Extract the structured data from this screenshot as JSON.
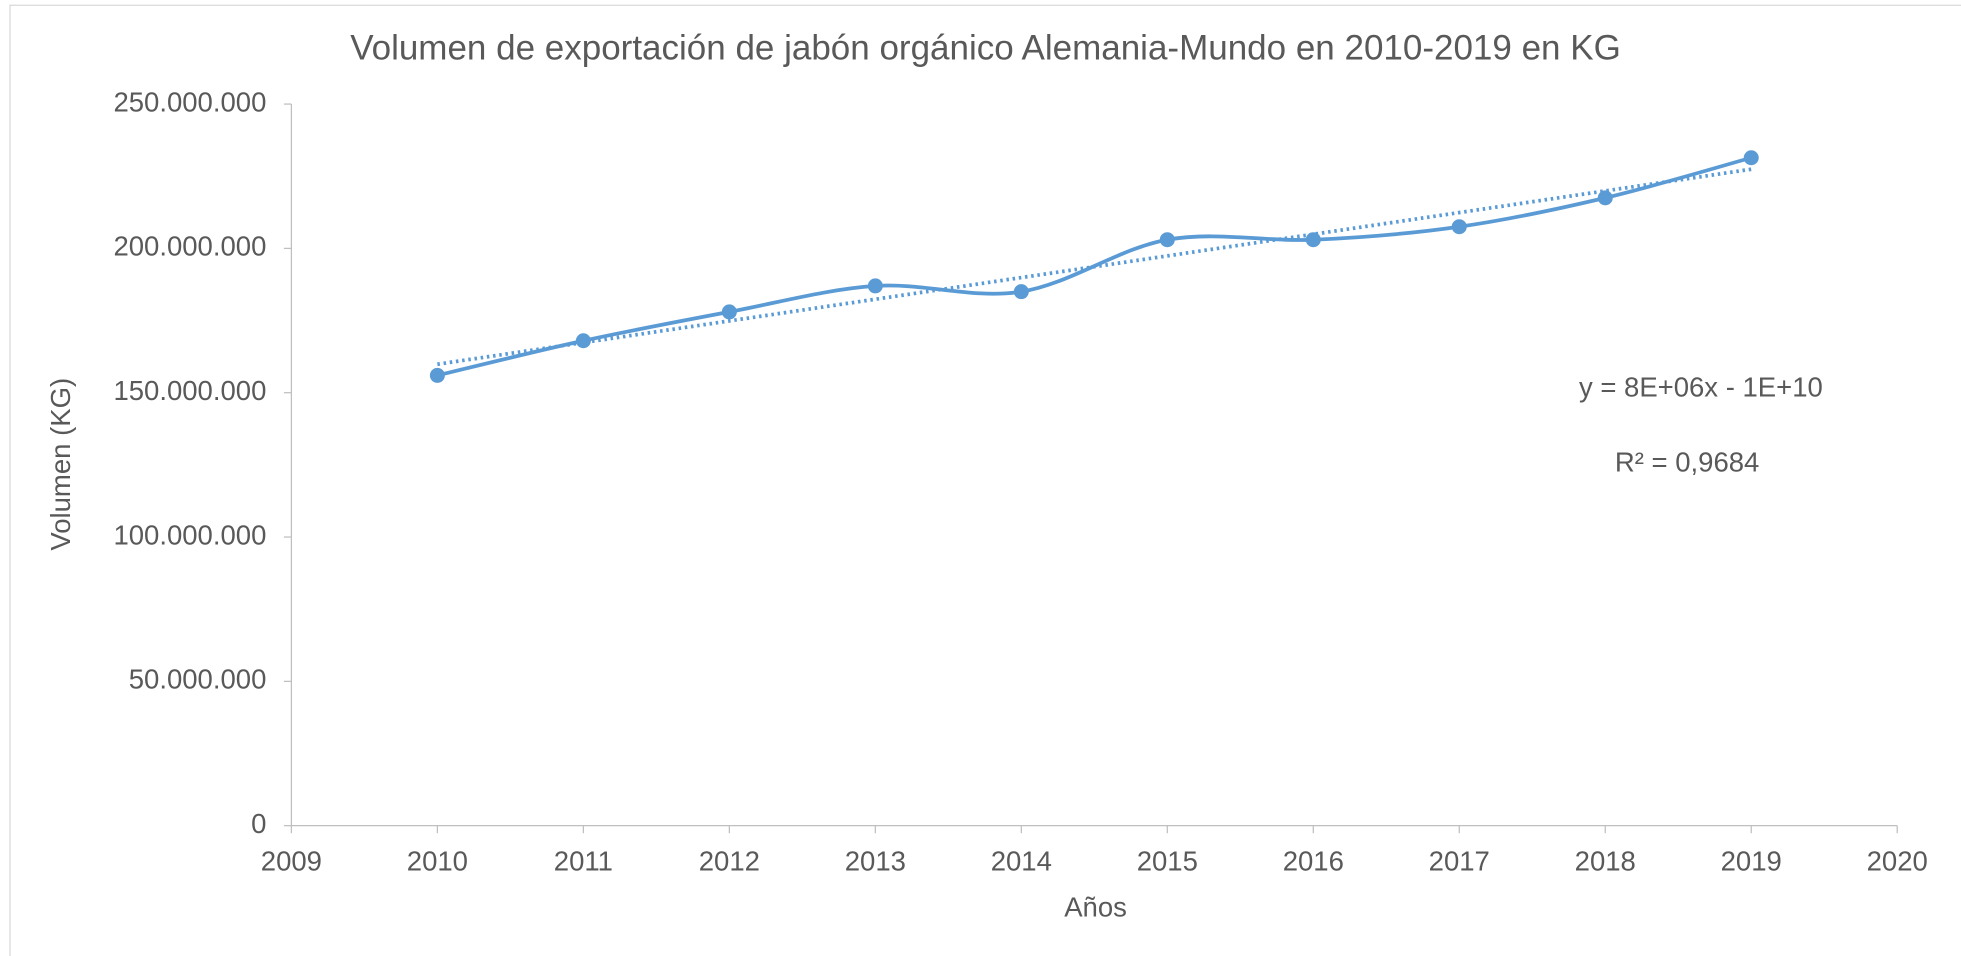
{
  "chart_data": {
    "type": "line",
    "title": "Volumen de exportación de jabón orgánico Alemania-Mundo en 2010-2019 en KG",
    "x_label": "Años",
    "y_label": "Volumen (KG)",
    "x": [
      2010,
      2011,
      2012,
      2013,
      2014,
      2015,
      2016,
      2017,
      2018,
      2019
    ],
    "series": [
      {
        "name": "Volumen",
        "color": "#5b9bd5",
        "values": [
          156000000,
          168000000,
          178000000,
          187000000,
          185000000,
          203000000,
          203000000,
          207500000,
          217500000,
          231400000
        ]
      }
    ],
    "smooth": true,
    "trendline": "linear",
    "annotations": [
      "y = 8E+06x - 1E+10",
      "R² = 0,9684"
    ],
    "xlim": [
      2009,
      2020
    ],
    "xticks": [
      2009,
      2010,
      2011,
      2012,
      2013,
      2014,
      2015,
      2016,
      2017,
      2018,
      2019,
      2020
    ],
    "ylim": [
      0,
      250000000
    ],
    "yticks": [
      0,
      {
        "value": 50000000,
        "label": "50.000.000"
      },
      {
        "value": 100000000,
        "label": "100.000.000"
      },
      {
        "value": 150000000,
        "label": "150.000.000"
      },
      {
        "value": 200000000,
        "label": "200.000.000"
      },
      {
        "value": 250000000,
        "label": "250.000.000"
      }
    ],
    "grid": false
  }
}
